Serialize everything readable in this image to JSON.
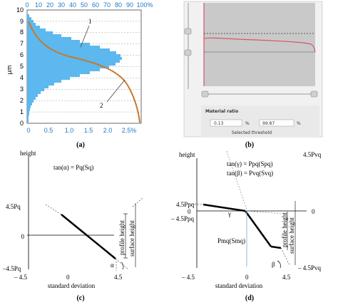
{
  "panel_a": {
    "caption": "(a)",
    "ylabel": "µm",
    "y_ticks": [
      "0",
      "1",
      "2",
      "3",
      "4",
      "5",
      "6",
      "7",
      "8",
      "9",
      "10"
    ],
    "top_ticks": [
      "0",
      "10",
      "20",
      "30",
      "40",
      "50",
      "60",
      "70",
      "80",
      "90",
      "100%"
    ],
    "bottom_ticks": [
      "0",
      "0.5",
      "1.0",
      "1.5",
      "2.0",
      "2.5%"
    ],
    "callout_1": "1",
    "callout_2": "2",
    "colors": {
      "histogram": "#5cb8ee",
      "curve": "#c8782a",
      "ticks": "#1f78c8"
    }
  },
  "panel_b": {
    "caption": "(b)",
    "section_label": "Material ratio",
    "field_left": "0.13",
    "unit_left": "%",
    "field_right": "99.87",
    "unit_right": "%",
    "footer_label": "Selected threshold",
    "colors": {
      "plot_bg": "#c9c9c9",
      "curve": "#d8556a"
    }
  },
  "panel_c": {
    "caption": "(c)",
    "height_label": "height",
    "formula": "tan(α) = Pq(Sq)",
    "y_top": "4.5Pq",
    "y_zero": "0",
    "y_bottom": "–4.5Pq",
    "x_left": "– 4.5",
    "x_zero": "0",
    "x_right": "4.5",
    "xlabel": "standard deviation",
    "angle": "α",
    "profile_height": "profile height",
    "surface_height": "surface height"
  },
  "panel_d": {
    "caption": "(d)",
    "height_label": "height",
    "y_top_right": "4.5Pvq",
    "formula_1": "tan(γ) = Ppq(Spq)",
    "formula_2": "tan(β) = Pvq(Svq)",
    "y_top_left": "4.5Ppq",
    "y_zero_left": "0",
    "y_bottom_left": "– 4.5Ppq",
    "y_zero_right": "0",
    "gamma": "γ",
    "beta": "β",
    "pmq": "Pmq(Smq)",
    "profile_height": "profile height",
    "surface_height": "surface height",
    "x_left": "– 4.5",
    "x_zero": "0",
    "x_right": "4.5",
    "y_bottom_right": "– 4.5Pvq",
    "xlabel": "standard deviation"
  }
}
